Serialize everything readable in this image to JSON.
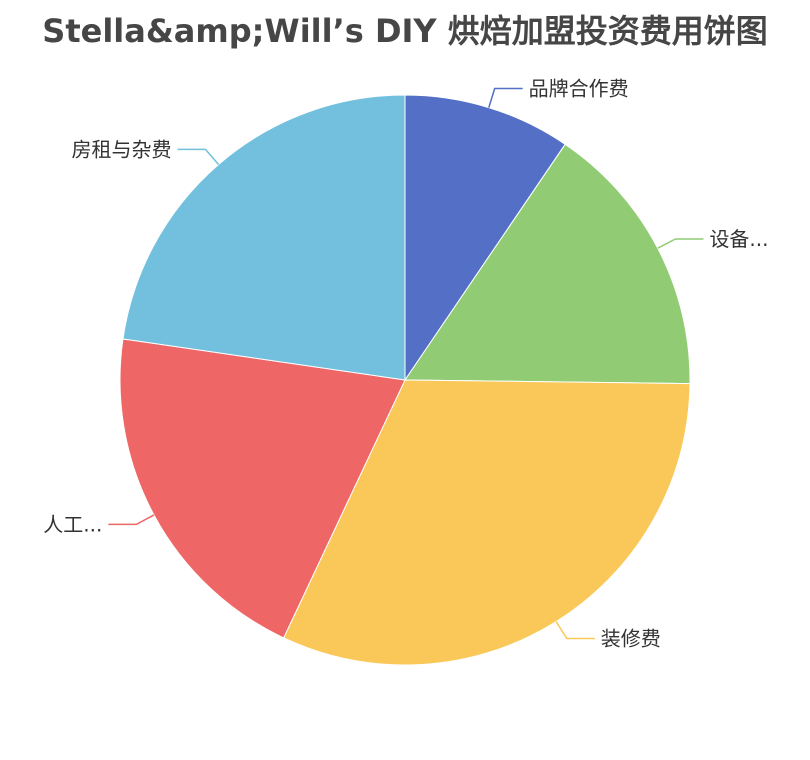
{
  "chart_data": {
    "type": "pie",
    "title": "Stella&amp;Will’s DIY 烘焙加盟投资费用饼图",
    "categories": [
      "品牌合作费",
      "设备...",
      "装修费",
      "人工...",
      "房租与杂费"
    ],
    "values": [
      9.5,
      15.7,
      31.8,
      20.3,
      22.7
    ],
    "colors": [
      "#5470c6",
      "#91cc75",
      "#fac858",
      "#ee6666",
      "#73c0de"
    ],
    "legend": "none"
  }
}
